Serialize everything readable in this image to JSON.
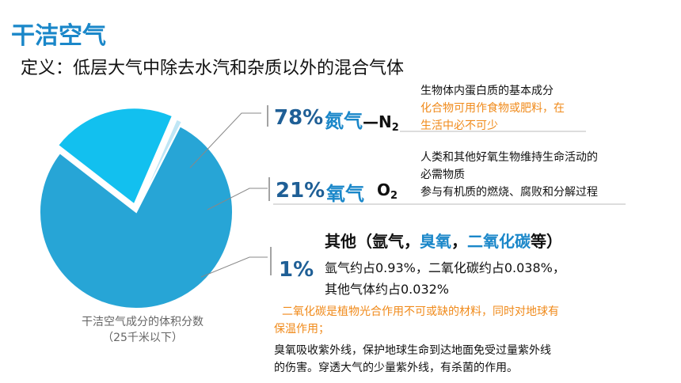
{
  "title": "干洁空气",
  "definition": "定义：低层大气中除去水汽和杂质以外的混合气体",
  "chart_data": {
    "type": "pie",
    "title": "干洁空气成分的体积分数",
    "subtitle": "（25千米以下）",
    "slices": [
      {
        "name": "氮气",
        "value": 78,
        "color": "#27a5d6"
      },
      {
        "name": "氧气",
        "value": 21,
        "color": "#12c0ef"
      },
      {
        "name": "其他",
        "value": 1,
        "color": "#bfe6f5"
      }
    ]
  },
  "nitrogen": {
    "percent": "78%",
    "name": "氮气",
    "dash": "—",
    "formula_base": "N",
    "formula_sub": "2",
    "note_line1": "生物体内蛋白质的基本成分",
    "note_line2": "化合物可用作食物或肥料，在",
    "note_line3": "生活中必不可少"
  },
  "oxygen": {
    "percent": "21%",
    "name": "氧气",
    "formula_base": "O",
    "formula_sub": "2",
    "note_line1": "人类和其他好氧生物维持生命活动的",
    "note_line2": "必需物质",
    "note_line3": "参与有机质的燃烧、腐败和分解过程"
  },
  "others": {
    "percent": "1%",
    "title_prefix": "其他（氩气，",
    "title_ozone": "臭氧",
    "title_sep": "，",
    "title_co2": "二氧化碳",
    "title_suffix": "等）",
    "detail_line1": "氩气约占0.93%，二氧化碳约占0.038%，",
    "detail_line2": "其他气体约占0.032%",
    "co2_note_line1": "二氧化碳是植物光合作用不可或缺的材料，同时对地球有",
    "co2_note_line2": "保温作用；",
    "ozone_note_line1": "臭氧吸收紫外线，保护地球生命到达地面免受过量紫外线",
    "ozone_note_line2": "的伤害。穿透大气的少量紫外线，有杀菌的作用。"
  }
}
